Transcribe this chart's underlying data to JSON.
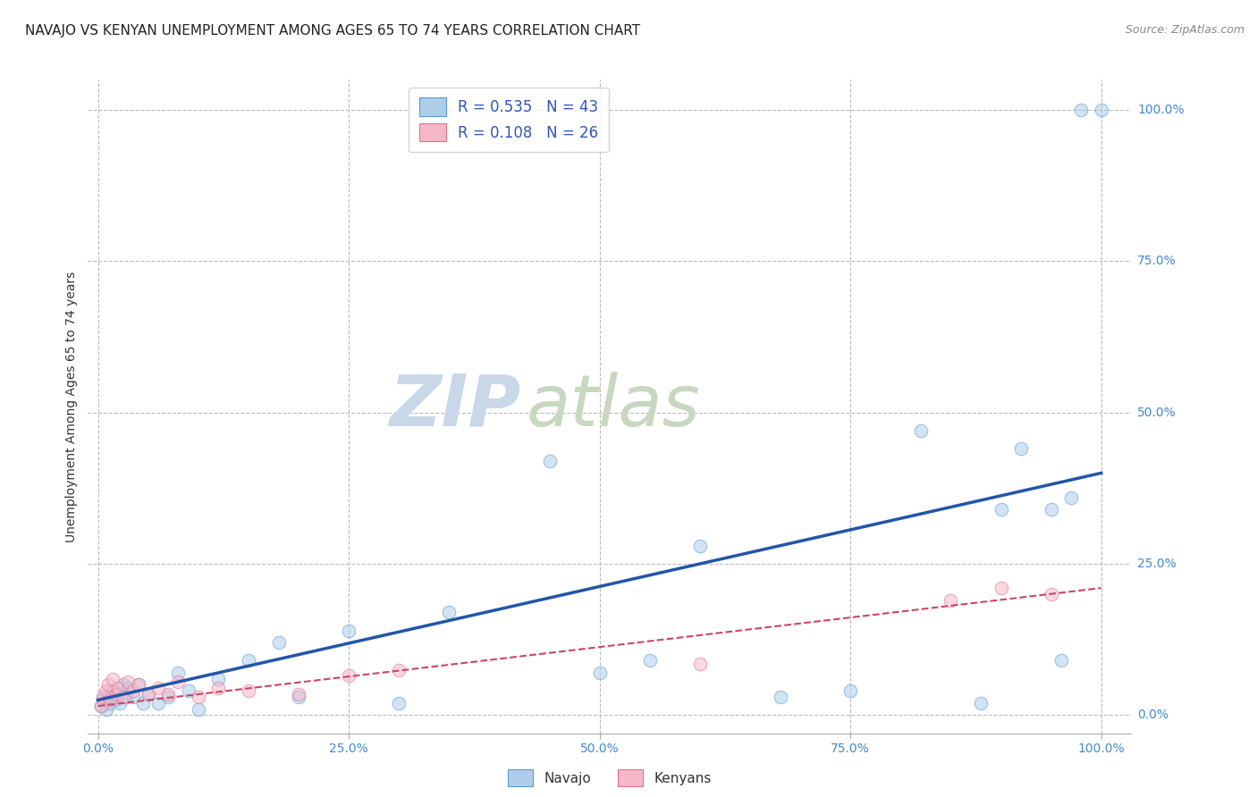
{
  "title": "NAVAJO VS KENYAN UNEMPLOYMENT AMONG AGES 65 TO 74 YEARS CORRELATION CHART",
  "source": "Source: ZipAtlas.com",
  "xlabel_vals": [
    0,
    25,
    50,
    75,
    100
  ],
  "ylabel": "Unemployment Among Ages 65 to 74 years",
  "ylabel_vals": [
    0,
    25,
    50,
    75,
    100
  ],
  "navajo_R": "0.535",
  "navajo_N": "43",
  "kenyan_R": "0.108",
  "kenyan_N": "26",
  "navajo_color": "#aecde8",
  "kenyan_color": "#f5b8c8",
  "navajo_edge_color": "#5b9bd5",
  "kenyan_edge_color": "#e07090",
  "navajo_line_color": "#2255aa",
  "kenyan_line_color": "#cc4466",
  "background_color": "#ffffff",
  "grid_color": "#bbbbbb",
  "watermark_zip_color": "#c8d8e8",
  "watermark_atlas_color": "#c8d8c8",
  "navajo_x": [
    0.3,
    0.5,
    0.8,
    1.0,
    1.2,
    1.5,
    1.8,
    2.0,
    2.2,
    2.5,
    2.8,
    3.0,
    3.5,
    4.0,
    4.5,
    5.0,
    6.0,
    7.0,
    8.0,
    9.0,
    10.0,
    12.0,
    15.0,
    18.0,
    20.0,
    25.0,
    30.0,
    35.0,
    45.0,
    50.0,
    55.0,
    60.0,
    68.0,
    75.0,
    82.0,
    88.0,
    90.0,
    92.0,
    95.0,
    96.0,
    97.0,
    98.0,
    100.0
  ],
  "navajo_y": [
    1.5,
    2.5,
    1.0,
    3.0,
    2.0,
    4.0,
    2.5,
    3.5,
    2.0,
    5.0,
    3.0,
    4.5,
    3.0,
    5.0,
    2.0,
    3.5,
    2.0,
    3.0,
    7.0,
    4.0,
    1.0,
    6.0,
    9.0,
    12.0,
    3.0,
    14.0,
    2.0,
    17.0,
    42.0,
    7.0,
    9.0,
    28.0,
    3.0,
    4.0,
    47.0,
    2.0,
    34.0,
    44.0,
    34.0,
    9.0,
    36.0,
    100.0,
    100.0
  ],
  "kenyan_x": [
    0.3,
    0.5,
    0.8,
    1.0,
    1.2,
    1.5,
    1.8,
    2.0,
    2.5,
    3.0,
    3.5,
    4.0,
    5.0,
    6.0,
    7.0,
    8.0,
    10.0,
    12.0,
    15.0,
    20.0,
    25.0,
    30.0,
    60.0,
    85.0,
    90.0,
    95.0
  ],
  "kenyan_y": [
    1.5,
    3.0,
    4.0,
    5.0,
    2.5,
    6.0,
    3.5,
    4.5,
    3.0,
    5.5,
    4.0,
    5.0,
    3.5,
    4.5,
    3.5,
    5.5,
    3.0,
    4.5,
    4.0,
    3.5,
    6.5,
    7.5,
    8.5,
    19.0,
    21.0,
    20.0
  ],
  "navajo_trendline_x": [
    0,
    100
  ],
  "navajo_trendline_y": [
    2.5,
    40.0
  ],
  "kenyan_trendline_x": [
    0,
    100
  ],
  "kenyan_trendline_y": [
    1.5,
    21.0
  ],
  "legend_navajo_label": "Navajo",
  "legend_kenyan_label": "Kenyans",
  "title_fontsize": 11,
  "axis_label_fontsize": 10,
  "tick_fontsize": 10,
  "marker_size": 110,
  "marker_alpha": 0.55,
  "xlim": [
    -1,
    103
  ],
  "ylim": [
    -3,
    105
  ]
}
